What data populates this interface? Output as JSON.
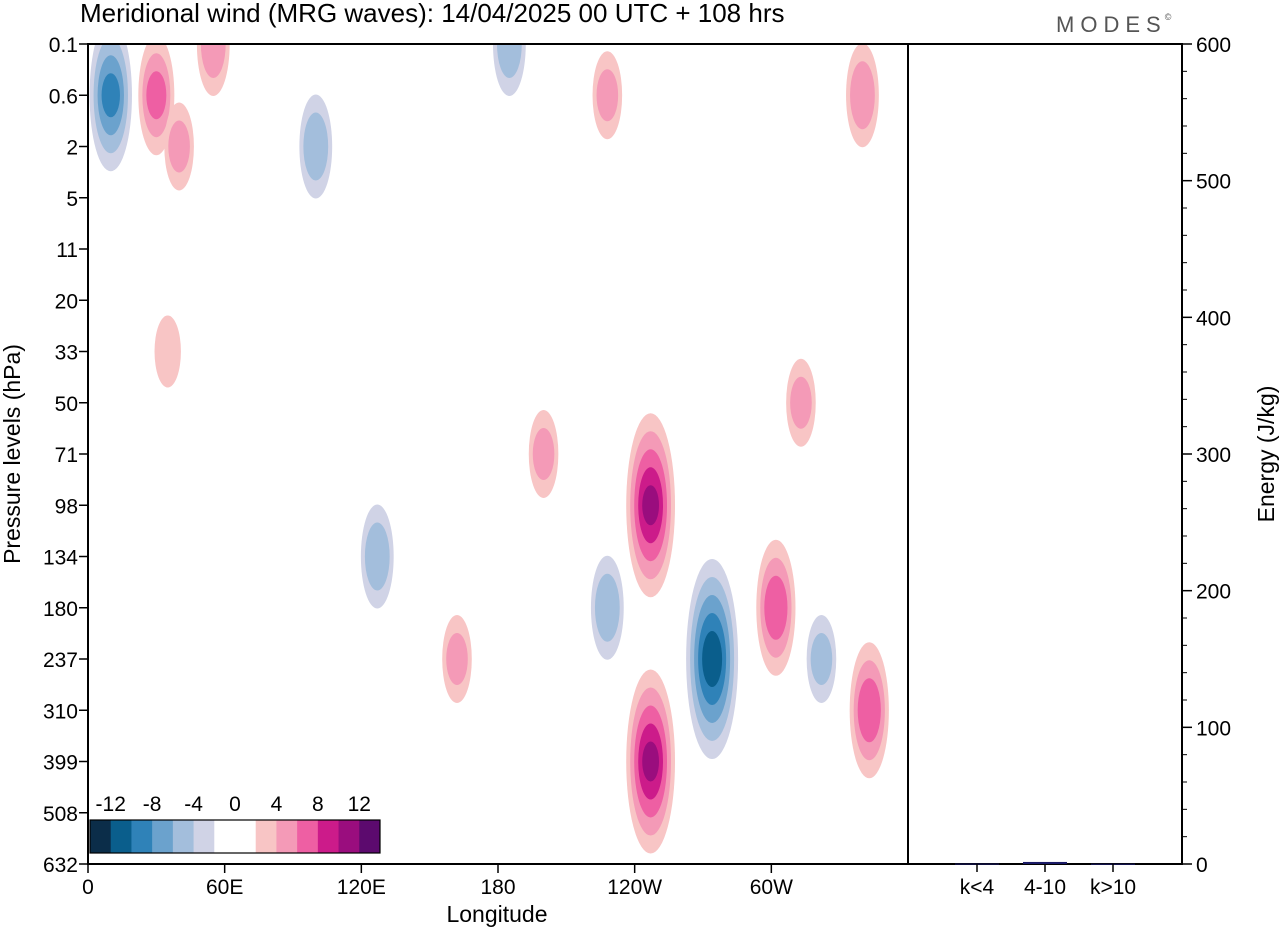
{
  "title": "Meridional wind (MRG waves):  14/04/2025  00 UTC  + 108 hrs",
  "brand": "MODES",
  "brand_mark": "©",
  "colors": {
    "negative": [
      "#0b2d49",
      "#0a5e8c",
      "#2f82b8",
      "#6ba2cd",
      "#a3bedc",
      "#d0d3e6"
    ],
    "positive": [
      "#f8c5c5",
      "#f49ab7",
      "#ee5fa3",
      "#cc1b8a",
      "#9a0d7e",
      "#5c0a6e"
    ],
    "energy_bar": "#1a1a66"
  },
  "chart_data": [
    {
      "type": "heatmap",
      "title": "Meridional wind (MRG waves):  14/04/2025  00 UTC  + 108 hrs",
      "xlabel": "Longitude",
      "ylabel": "Pressure levels (hPa)",
      "x_ticks": [
        "0",
        "60E",
        "120E",
        "180",
        "120W",
        "60W"
      ],
      "x_tick_degrees": [
        0,
        60,
        120,
        180,
        240,
        300
      ],
      "xlim": [
        0,
        360
      ],
      "y_ticks": [
        "0.1",
        "0.6",
        "2",
        "5",
        "11",
        "20",
        "33",
        "50",
        "71",
        "98",
        "134",
        "180",
        "237",
        "310",
        "399",
        "508",
        "632"
      ],
      "colorbar": {
        "labels": [
          "-12",
          "-8",
          "-4",
          "0",
          "4",
          "8",
          "12"
        ],
        "levels": [
          -14,
          -12,
          -10,
          -8,
          -6,
          -4,
          -2,
          2,
          4,
          6,
          8,
          10,
          12,
          14
        ]
      },
      "features": [
        {
          "lon": 10,
          "level": "0.6",
          "value": -7
        },
        {
          "lon": 30,
          "level": "0.6",
          "value": 5
        },
        {
          "lon": 55,
          "level": "0.1",
          "value": 4
        },
        {
          "lon": 40,
          "level": "2",
          "value": 3
        },
        {
          "lon": 100,
          "level": "2",
          "value": -4
        },
        {
          "lon": 185,
          "level": "0.1",
          "value": -4
        },
        {
          "lon": 228,
          "level": "0.6",
          "value": 3
        },
        {
          "lon": 340,
          "level": "0.6",
          "value": 4
        },
        {
          "lon": 35,
          "level": "33",
          "value": 2
        },
        {
          "lon": 127,
          "level": "134",
          "value": -4
        },
        {
          "lon": 162,
          "level": "237",
          "value": 3
        },
        {
          "lon": 228,
          "level": "180",
          "value": -4
        },
        {
          "lon": 247,
          "level": "98",
          "value": 9
        },
        {
          "lon": 247,
          "level": "399",
          "value": 9
        },
        {
          "lon": 274,
          "level": "237",
          "value": -10
        },
        {
          "lon": 302,
          "level": "180",
          "value": 6
        },
        {
          "lon": 322,
          "level": "237",
          "value": -3
        },
        {
          "lon": 343,
          "level": "310",
          "value": 6
        },
        {
          "lon": 200,
          "level": "71",
          "value": 3
        },
        {
          "lon": 313,
          "level": "50",
          "value": 3
        }
      ]
    },
    {
      "type": "bar",
      "ylabel": "Energy (J/kg)",
      "categories": [
        "k<4",
        "4-10",
        "k>10"
      ],
      "values": [
        0.3,
        1.5,
        0.2
      ],
      "ylim": [
        0,
        600
      ],
      "y_ticks": [
        "0",
        "100",
        "200",
        "300",
        "400",
        "500",
        "600"
      ]
    }
  ]
}
